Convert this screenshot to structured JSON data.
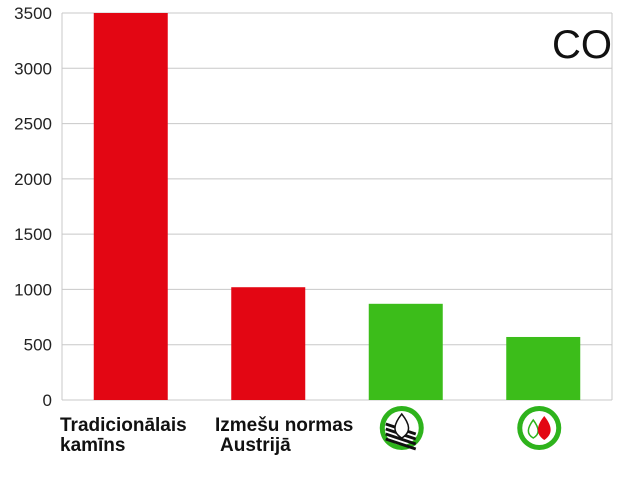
{
  "chart_data": {
    "type": "bar",
    "annotation": "CO",
    "categories": [
      {
        "lines": [
          "Tradicionālais",
          "kamīns"
        ],
        "icon": null
      },
      {
        "lines": [
          "Izmešu normas",
          "Austrijā"
        ],
        "icon": null
      },
      {
        "lines": [],
        "icon": "stove-flame-icon"
      },
      {
        "lines": [],
        "icon": "fire-drop-icon"
      }
    ],
    "values": [
      3500,
      1020,
      870,
      570
    ],
    "bar_colors": [
      "#e30613",
      "#e30613",
      "#3cbd1a",
      "#3cbd1a"
    ],
    "yticks": [
      0,
      500,
      1000,
      1500,
      2000,
      2500,
      3000,
      3500
    ],
    "ylim": [
      0,
      3500
    ],
    "grid": true,
    "colors": {
      "red": "#e30613",
      "green": "#3cbd1a",
      "grid": "#c8c8c8",
      "icon_ring": "#2eb31c"
    }
  }
}
